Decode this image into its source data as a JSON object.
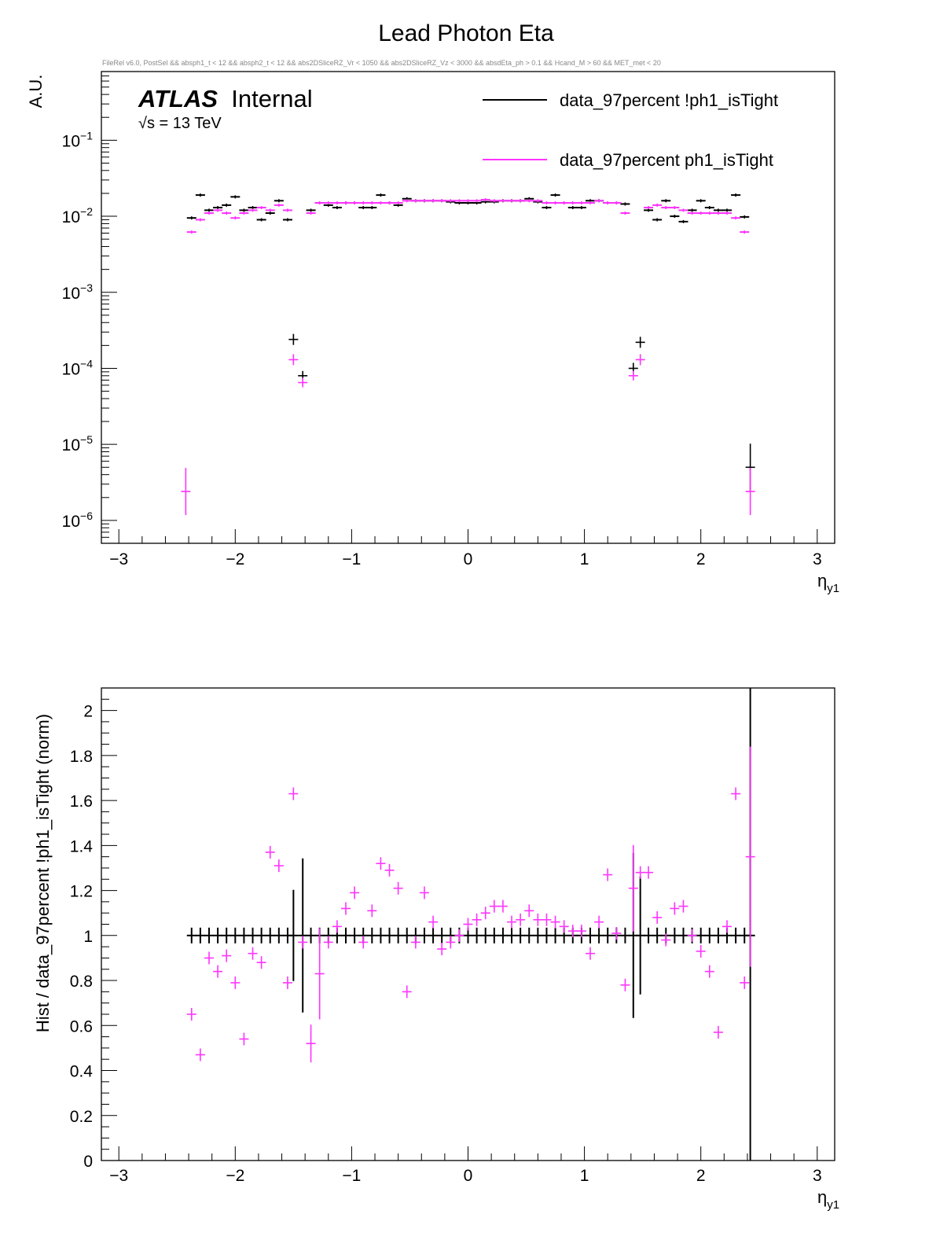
{
  "title": "Lead Photon Eta",
  "cut_string": "FileRel v6.0, PostSel &&  absph1_t < 12 && absph2_t < 12 && abs2DSliceRZ_Vr < 1050 && abs2DSliceRZ_Vz < 3000 && absdEta_ph > 0.1 && Hcand_M > 60 && MET_met < 20",
  "atlas_label": "ATLAS",
  "atlas_sub": "Internal",
  "energy_label": "√s = 13 TeV",
  "colors": {
    "black": "#000000",
    "magenta": "#ff33ff"
  },
  "chart_data": [
    {
      "type": "scatter",
      "yscale": "log",
      "xlabel": "η_y1",
      "ylabel": "A.U.",
      "xlim": [
        -3.15,
        3.15
      ],
      "ylim": [
        5e-07,
        0.8
      ],
      "xticks": [
        "−3",
        "−2",
        "−1",
        "0",
        "1",
        "2",
        "3"
      ],
      "ytick_exponents": [
        "−1",
        "−2",
        "−3",
        "−4",
        "−5",
        "−6"
      ],
      "legend": "top-right",
      "series": [
        {
          "name": "data_97percent !ph1_isTight",
          "color": "#000000",
          "points": [
            [
              -2.375,
              0.0095
            ],
            [
              -2.3,
              0.019
            ],
            [
              -2.225,
              0.012
            ],
            [
              -2.15,
              0.013
            ],
            [
              -2.075,
              0.014
            ],
            [
              -2.0,
              0.018
            ],
            [
              -1.925,
              0.012
            ],
            [
              -1.85,
              0.013
            ],
            [
              -1.775,
              0.009
            ],
            [
              -1.7,
              0.011
            ],
            [
              -1.625,
              0.016
            ],
            [
              -1.55,
              0.009
            ],
            [
              -1.5,
              0.00024
            ],
            [
              -1.42,
              8e-05
            ],
            [
              -1.35,
              0.012
            ],
            [
              -1.275,
              0.015
            ],
            [
              -1.2,
              0.014
            ],
            [
              -1.125,
              0.013
            ],
            [
              -1.05,
              0.015
            ],
            [
              -0.975,
              0.015
            ],
            [
              -0.9,
              0.013
            ],
            [
              -0.825,
              0.013
            ],
            [
              -0.75,
              0.019
            ],
            [
              -0.675,
              0.015
            ],
            [
              -0.6,
              0.014
            ],
            [
              -0.525,
              0.017
            ],
            [
              -0.45,
              0.016
            ],
            [
              -0.375,
              0.016
            ],
            [
              -0.3,
              0.016
            ],
            [
              -0.225,
              0.016
            ],
            [
              -0.15,
              0.0155
            ],
            [
              -0.075,
              0.015
            ],
            [
              0.0,
              0.015
            ],
            [
              0.075,
              0.015
            ],
            [
              0.15,
              0.0155
            ],
            [
              0.225,
              0.0155
            ],
            [
              0.3,
              0.016
            ],
            [
              0.375,
              0.016
            ],
            [
              0.45,
              0.016
            ],
            [
              0.525,
              0.017
            ],
            [
              0.6,
              0.0155
            ],
            [
              0.675,
              0.013
            ],
            [
              0.75,
              0.019
            ],
            [
              0.825,
              0.015
            ],
            [
              0.9,
              0.013
            ],
            [
              0.975,
              0.013
            ],
            [
              1.05,
              0.016
            ],
            [
              1.125,
              0.016
            ],
            [
              1.2,
              0.015
            ],
            [
              1.275,
              0.015
            ],
            [
              1.35,
              0.0145
            ],
            [
              1.42,
              0.0001
            ],
            [
              1.48,
              0.00022
            ],
            [
              1.55,
              0.012
            ],
            [
              1.625,
              0.009
            ],
            [
              1.7,
              0.016
            ],
            [
              1.775,
              0.01
            ],
            [
              1.85,
              0.0085
            ],
            [
              1.925,
              0.012
            ],
            [
              2.0,
              0.016
            ],
            [
              2.075,
              0.013
            ],
            [
              2.15,
              0.012
            ],
            [
              2.225,
              0.012
            ],
            [
              2.3,
              0.019
            ],
            [
              2.375,
              0.0098
            ],
            [
              2.425,
              5e-06
            ]
          ]
        },
        {
          "name": "data_97percent ph1_isTight",
          "color": "#ff33ff",
          "points": [
            [
              -2.425,
              2.4e-06
            ],
            [
              -2.375,
              0.0062
            ],
            [
              -2.3,
              0.009
            ],
            [
              -2.225,
              0.011
            ],
            [
              -2.15,
              0.012
            ],
            [
              -2.075,
              0.011
            ],
            [
              -2.0,
              0.0095
            ],
            [
              -1.925,
              0.011
            ],
            [
              -1.85,
              0.012
            ],
            [
              -1.775,
              0.013
            ],
            [
              -1.7,
              0.012
            ],
            [
              -1.625,
              0.014
            ],
            [
              -1.55,
              0.012
            ],
            [
              -1.5,
              0.00013
            ],
            [
              -1.42,
              6.5e-05
            ],
            [
              -1.35,
              0.011
            ],
            [
              -1.275,
              0.015
            ],
            [
              -1.2,
              0.015
            ],
            [
              -1.125,
              0.015
            ],
            [
              -1.05,
              0.015
            ],
            [
              -0.975,
              0.015
            ],
            [
              -0.9,
              0.015
            ],
            [
              -0.825,
              0.015
            ],
            [
              -0.75,
              0.015
            ],
            [
              -0.675,
              0.015
            ],
            [
              -0.6,
              0.015
            ],
            [
              -0.525,
              0.016
            ],
            [
              -0.45,
              0.016
            ],
            [
              -0.375,
              0.016
            ],
            [
              -0.3,
              0.016
            ],
            [
              -0.225,
              0.016
            ],
            [
              -0.15,
              0.016
            ],
            [
              -0.075,
              0.016
            ],
            [
              0.0,
              0.016
            ],
            [
              0.075,
              0.016
            ],
            [
              0.15,
              0.0165
            ],
            [
              0.225,
              0.016
            ],
            [
              0.3,
              0.016
            ],
            [
              0.375,
              0.016
            ],
            [
              0.45,
              0.016
            ],
            [
              0.525,
              0.016
            ],
            [
              0.6,
              0.016
            ],
            [
              0.675,
              0.015
            ],
            [
              0.75,
              0.015
            ],
            [
              0.825,
              0.015
            ],
            [
              0.9,
              0.015
            ],
            [
              0.975,
              0.015
            ],
            [
              1.05,
              0.015
            ],
            [
              1.125,
              0.016
            ],
            [
              1.2,
              0.015
            ],
            [
              1.275,
              0.015
            ],
            [
              1.35,
              0.011
            ],
            [
              1.42,
              8e-05
            ],
            [
              1.48,
              0.00013
            ],
            [
              1.55,
              0.013
            ],
            [
              1.625,
              0.014
            ],
            [
              1.7,
              0.013
            ],
            [
              1.775,
              0.013
            ],
            [
              1.85,
              0.012
            ],
            [
              1.925,
              0.011
            ],
            [
              2.0,
              0.011
            ],
            [
              2.075,
              0.011
            ],
            [
              2.15,
              0.011
            ],
            [
              2.225,
              0.011
            ],
            [
              2.3,
              0.0095
            ],
            [
              2.375,
              0.0062
            ],
            [
              2.425,
              2.4e-06
            ]
          ]
        }
      ]
    },
    {
      "type": "scatter",
      "xlabel": "η_y1",
      "ylabel": "Hist / data_97percent !ph1_isTight (norm)",
      "xlim": [
        -3.15,
        3.15
      ],
      "ylim": [
        0,
        2.1
      ],
      "xticks": [
        "−3",
        "−2",
        "−1",
        "0",
        "1",
        "2",
        "3"
      ],
      "yticks": [
        "0",
        "0.2",
        "0.4",
        "0.6",
        "0.8",
        "1",
        "1.2",
        "1.4",
        "1.6",
        "1.8",
        "2"
      ],
      "series": [
        {
          "name": "data_97percent !ph1_isTight",
          "color": "#000000",
          "x": [
            -2.375,
            -2.3,
            -2.225,
            -2.15,
            -2.075,
            -2.0,
            -1.925,
            -1.85,
            -1.775,
            -1.7,
            -1.625,
            -1.55,
            -1.5,
            -1.42,
            -1.35,
            -1.275,
            -1.2,
            -1.125,
            -1.05,
            -0.975,
            -0.9,
            -0.825,
            -0.75,
            -0.675,
            -0.6,
            -0.525,
            -0.45,
            -0.375,
            -0.3,
            -0.225,
            -0.15,
            -0.075,
            0.0,
            0.075,
            0.15,
            0.225,
            0.3,
            0.375,
            0.45,
            0.525,
            0.6,
            0.675,
            0.75,
            0.825,
            0.9,
            0.975,
            1.05,
            1.125,
            1.2,
            1.275,
            1.35,
            1.42,
            1.48,
            1.55,
            1.625,
            1.7,
            1.775,
            1.85,
            1.925,
            2.0,
            2.075,
            2.15,
            2.225,
            2.3,
            2.375,
            2.425
          ],
          "y_value": 1
        },
        {
          "name": "data_97percent ph1_isTight",
          "color": "#ff33ff",
          "points": [
            [
              -2.375,
              0.65
            ],
            [
              -2.3,
              0.47
            ],
            [
              -2.225,
              0.9
            ],
            [
              -2.15,
              0.84
            ],
            [
              -2.075,
              0.91
            ],
            [
              -2.0,
              0.79
            ],
            [
              -1.925,
              0.54
            ],
            [
              -1.85,
              0.92
            ],
            [
              -1.775,
              0.88
            ],
            [
              -1.7,
              1.37
            ],
            [
              -1.625,
              1.31
            ],
            [
              -1.55,
              0.79
            ],
            [
              -1.5,
              1.63
            ],
            [
              -1.42,
              0.97
            ],
            [
              -1.35,
              0.52
            ],
            [
              -1.275,
              0.83
            ],
            [
              -1.2,
              0.97
            ],
            [
              -1.125,
              1.04
            ],
            [
              -1.05,
              1.12
            ],
            [
              -0.975,
              1.19
            ],
            [
              -0.9,
              0.97
            ],
            [
              -0.825,
              1.11
            ],
            [
              -0.75,
              1.32
            ],
            [
              -0.675,
              1.29
            ],
            [
              -0.6,
              1.21
            ],
            [
              -0.525,
              0.75
            ],
            [
              -0.45,
              0.97
            ],
            [
              -0.375,
              1.19
            ],
            [
              -0.3,
              1.06
            ],
            [
              -0.225,
              0.94
            ],
            [
              -0.15,
              0.97
            ],
            [
              -0.075,
              1.0
            ],
            [
              0.0,
              1.05
            ],
            [
              0.075,
              1.07
            ],
            [
              0.15,
              1.1
            ],
            [
              0.225,
              1.13
            ],
            [
              0.3,
              1.13
            ],
            [
              0.375,
              1.06
            ],
            [
              0.45,
              1.07
            ],
            [
              0.525,
              1.11
            ],
            [
              0.6,
              1.07
            ],
            [
              0.675,
              1.07
            ],
            [
              0.75,
              1.06
            ],
            [
              0.825,
              1.04
            ],
            [
              0.9,
              1.02
            ],
            [
              0.975,
              1.02
            ],
            [
              1.05,
              0.92
            ],
            [
              1.125,
              1.06
            ],
            [
              1.2,
              1.27
            ],
            [
              1.275,
              1.01
            ],
            [
              1.35,
              0.78
            ],
            [
              1.42,
              1.21
            ],
            [
              1.48,
              1.28
            ],
            [
              1.55,
              1.28
            ],
            [
              1.625,
              1.08
            ],
            [
              1.7,
              0.98
            ],
            [
              1.775,
              1.12
            ],
            [
              1.85,
              1.13
            ],
            [
              1.925,
              1.0
            ],
            [
              2.0,
              0.93
            ],
            [
              2.075,
              0.84
            ],
            [
              2.15,
              0.57
            ],
            [
              2.225,
              1.04
            ],
            [
              2.3,
              1.63
            ],
            [
              2.375,
              0.79
            ],
            [
              2.425,
              1.35
            ]
          ]
        }
      ]
    }
  ]
}
